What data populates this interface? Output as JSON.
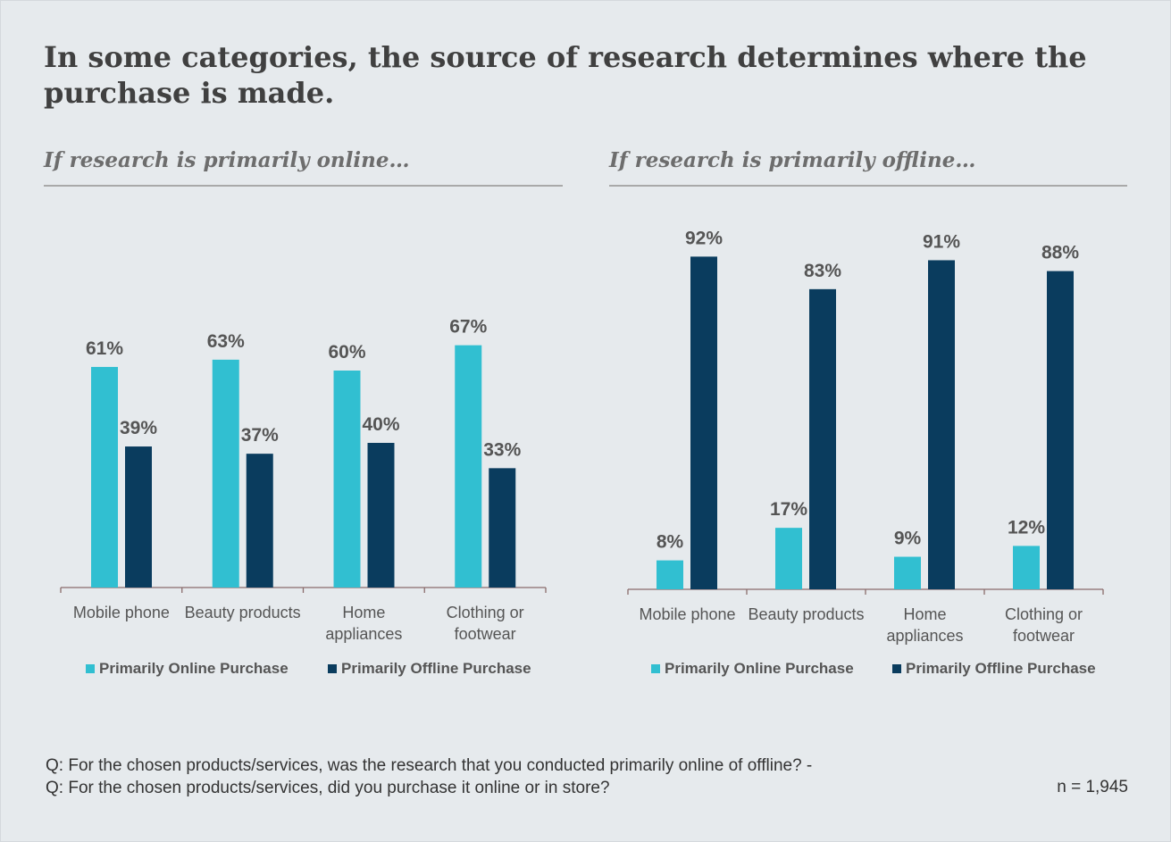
{
  "title": "In some categories, the source of research determines where the purchase is made.",
  "colors": {
    "online": "#31bfd1",
    "offline": "#0a3c5e",
    "axis": "#8a6b6b",
    "text": "#404040",
    "label": "#555555"
  },
  "chart_data": [
    {
      "type": "bar",
      "title": "If research is primarily online…",
      "categories": [
        "Mobile phone",
        "Beauty products",
        "Home appliances",
        "Clothing or footwear"
      ],
      "category_lines": [
        [
          "Mobile phone"
        ],
        [
          "Beauty products"
        ],
        [
          "Home",
          "appliances"
        ],
        [
          "Clothing or",
          "footwear"
        ]
      ],
      "series": [
        {
          "name": "Primarily Online Purchase",
          "values": [
            61,
            63,
            60,
            67
          ],
          "labels": [
            "61%",
            "63%",
            "60%",
            "67%"
          ]
        },
        {
          "name": "Primarily Offline Purchase",
          "values": [
            39,
            37,
            40,
            33
          ],
          "labels": [
            "39%",
            "37%",
            "40%",
            "33%"
          ]
        }
      ],
      "ylim": [
        0,
        100
      ],
      "legend_position": "bottom",
      "grid": false
    },
    {
      "type": "bar",
      "title": "If research is primarily offline…",
      "categories": [
        "Mobile phone",
        "Beauty products",
        "Home appliances",
        "Clothing or footwear"
      ],
      "category_lines": [
        [
          "Mobile phone"
        ],
        [
          "Beauty products"
        ],
        [
          "Home",
          "appliances"
        ],
        [
          "Clothing or",
          "footwear"
        ]
      ],
      "series": [
        {
          "name": "Primarily Online Purchase",
          "values": [
            8,
            17,
            9,
            12
          ],
          "labels": [
            "8%",
            "17%",
            "9%",
            "12%"
          ]
        },
        {
          "name": "Primarily Offline Purchase",
          "values": [
            92,
            83,
            91,
            88
          ],
          "labels": [
            "92%",
            "83%",
            "91%",
            "88%"
          ]
        }
      ],
      "ylim": [
        0,
        100
      ],
      "legend_position": "bottom",
      "grid": false
    }
  ],
  "footnote": "Q: For the chosen products/services, was the research that you conducted primarily online of offline? - Q: For the chosen products/services, did you purchase it online or in store?",
  "sample_size": "n = 1,945"
}
